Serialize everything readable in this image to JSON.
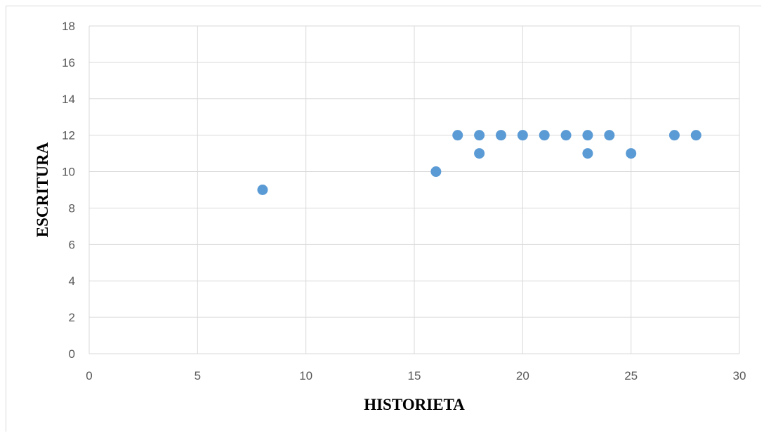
{
  "chart_data": {
    "type": "scatter",
    "title": "",
    "xlabel": "HISTORIETA",
    "ylabel": "ESCRITURA",
    "xlim": [
      0,
      30
    ],
    "ylim": [
      0,
      18
    ],
    "xticks": [
      0,
      5,
      10,
      15,
      20,
      25,
      30
    ],
    "yticks": [
      0,
      2,
      4,
      6,
      8,
      10,
      12,
      14,
      16,
      18
    ],
    "grid": true,
    "legend": "none",
    "marker_color": "#5B9BD5",
    "series": [
      {
        "x": [
          8,
          16,
          17,
          18,
          18,
          19,
          20,
          21,
          22,
          23,
          23,
          24,
          25,
          27,
          28
        ],
        "y": [
          9,
          10,
          12,
          12,
          11,
          12,
          12,
          12,
          12,
          12,
          11,
          12,
          11,
          12,
          12
        ]
      }
    ]
  }
}
